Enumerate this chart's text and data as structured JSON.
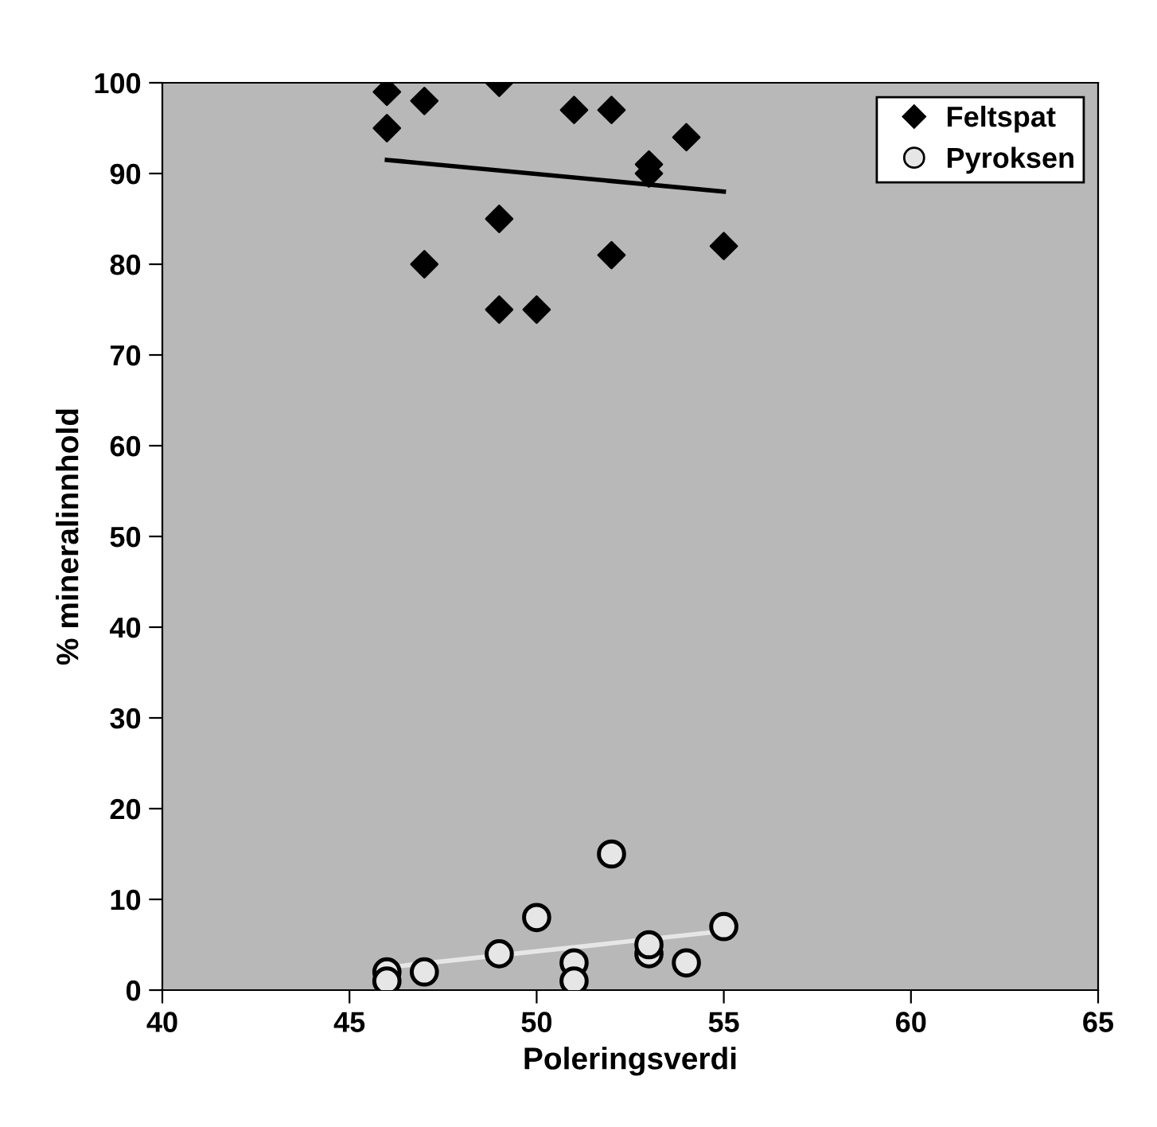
{
  "chart_data": {
    "type": "scatter",
    "xlabel": "Poleringsverdi",
    "ylabel": "% mineralinnhold",
    "xlim": [
      40,
      65
    ],
    "xticks": [
      40,
      45,
      50,
      55,
      60,
      65
    ],
    "ylim": [
      0,
      100
    ],
    "yticks": [
      0,
      10,
      20,
      30,
      40,
      50,
      60,
      70,
      80,
      90,
      100
    ],
    "grid": false,
    "legend": "top right",
    "series": [
      {
        "name": "Feltspat",
        "color": "#000000",
        "marker": "diamond",
        "x": [
          46,
          46,
          47,
          49,
          51,
          52,
          54,
          53,
          53,
          49,
          47,
          52,
          55,
          49,
          50
        ],
        "values": [
          99,
          95,
          98,
          100,
          97,
          97,
          94,
          91,
          90,
          85,
          80,
          81,
          82,
          75,
          75
        ]
      },
      {
        "name": "Pyroksen",
        "color": "#e6e6e6",
        "marker": "circle",
        "x": [
          46,
          46,
          47,
          49,
          50,
          51,
          51,
          52,
          53,
          53,
          54,
          55
        ],
        "values": [
          2,
          1,
          2,
          4,
          8,
          3,
          1,
          15,
          4,
          5,
          3,
          7
        ]
      },
      {
        "type": "line",
        "color": "#000000",
        "marker": "none",
        "x": [
          46,
          55
        ],
        "values": [
          91.5,
          88
        ]
      },
      {
        "type": "line",
        "color": "#e6e6e6",
        "marker": "none",
        "x": [
          46,
          55
        ],
        "values": [
          2.5,
          6.5
        ]
      }
    ]
  }
}
